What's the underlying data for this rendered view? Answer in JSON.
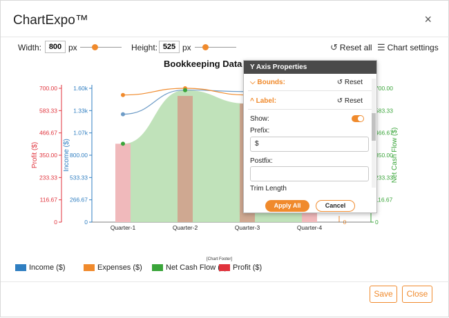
{
  "app": {
    "title": "ChartExpo™",
    "close_glyph": "×"
  },
  "toolbar": {
    "width_label": "Width:",
    "width_value": "800",
    "width_unit": "px",
    "height_label": "Height:",
    "height_value": "525",
    "height_unit": "px",
    "reset_all_label": "Reset all",
    "chart_settings_label": "Chart settings",
    "width_slider_level": 0.35,
    "height_slider_level": 0.25
  },
  "chart": {
    "title_visible": "Bookkeeping Data A",
    "footer_note": "[Chart Footer]"
  },
  "chart_data": {
    "type": "bar",
    "title": "Bookkeeping Data A",
    "categories": [
      "Quarter-1",
      "Quarter-2",
      "Quarter-3",
      "Quarter-4"
    ],
    "axes": {
      "profit": {
        "label": "Profit ($)",
        "ticks": [
          "700.00",
          "583.33",
          "466.67",
          "350.00",
          "233.33",
          "116.67",
          "0"
        ],
        "range": [
          0,
          700
        ],
        "color": "#e0333c"
      },
      "income": {
        "label": "Income ($)",
        "ticks": [
          "1.60k",
          "1.33k",
          "1.07k",
          "800.00",
          "533.33",
          "266.67",
          "0"
        ],
        "range": [
          0,
          1600
        ],
        "color": "#2f7ec1"
      },
      "net_cash_flow": {
        "label": "Net Cash Flow ($)",
        "ticks": [
          "700.00",
          "583.33",
          "466.67",
          "350.00",
          "233.33",
          "116.67",
          "0"
        ],
        "range": [
          0,
          700
        ],
        "color": "#3aa53a"
      },
      "right_extra": {
        "ticks": [
          "0"
        ],
        "color": "#f08a2c"
      }
    },
    "series": [
      {
        "name": "Profit ($)",
        "values": [
          410,
          660,
          620,
          90
        ],
        "color": "#f0b9bb"
      },
      {
        "name": "Income ($)",
        "values": [
          1290,
          1580,
          1560,
          1480
        ],
        "color": "#6e9cc7"
      },
      {
        "name": "Expenses ($)",
        "values": [
          1520,
          1600,
          1520,
          1450
        ],
        "color": "#f08a2c"
      },
      {
        "name": "Net Cash Flow ($)",
        "values": [
          410,
          690,
          620,
          560
        ],
        "color": "#3aa53a"
      }
    ]
  },
  "legend": [
    {
      "label": "Income ($)",
      "color": "#2f7ec1"
    },
    {
      "label": "Expenses ($)",
      "color": "#f08a2c"
    },
    {
      "label": "Net Cash Flow ($)",
      "color": "#3aa53a"
    },
    {
      "label": "Profit ($)",
      "color": "#e0333c"
    }
  ],
  "panel": {
    "title": "Y Axis Properties",
    "bounds_label": "Bounds:",
    "label_label": "Label:",
    "reset_label": "Reset",
    "show_label": "Show:",
    "prefix_label": "Prefix:",
    "prefix_value": "$",
    "postfix_label": "Postfix:",
    "postfix_value": "",
    "trim_label": "Trim Length",
    "apply_label": "Apply All",
    "cancel_label": "Cancel",
    "show_enabled": true
  },
  "footer": {
    "save_label": "Save",
    "close_label": "Close"
  },
  "colors": {
    "accent": "#f08a2c",
    "panel_header": "#4a4a4a",
    "net_area": "#b9dfb3",
    "profit_bar": "#f0b9bb",
    "overlap_bar": "#c9a48a"
  }
}
